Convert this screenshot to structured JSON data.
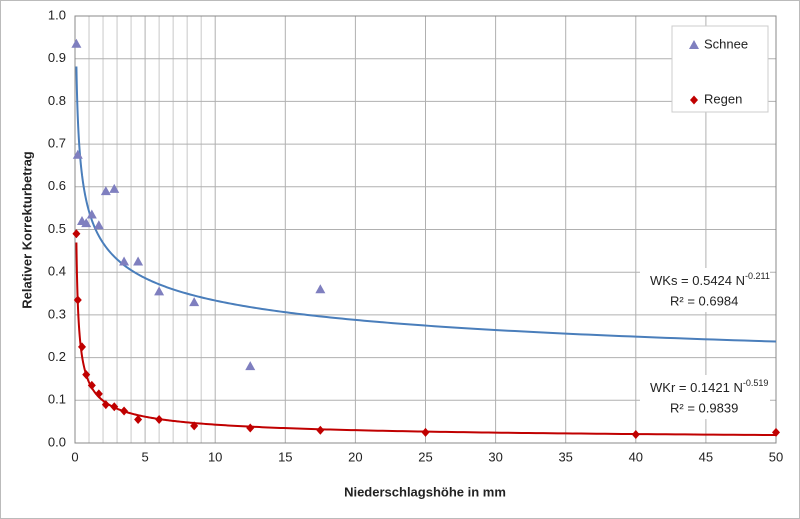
{
  "chart_data": {
    "type": "scatter",
    "xlabel": "Niederschlagshöhe in mm",
    "ylabel": "Relativer Korrekturbetrag",
    "xlim": [
      0,
      50
    ],
    "ylim": [
      0,
      1
    ],
    "xticks": [
      0,
      5,
      10,
      15,
      20,
      25,
      30,
      35,
      40,
      45,
      50
    ],
    "x_minor_ticks": [
      1,
      2,
      3,
      4,
      6,
      7,
      8,
      9
    ],
    "yticks": [
      {
        "value": 0,
        "label": "0.0"
      },
      0.1,
      0.2,
      0.3,
      0.4,
      0.5,
      0.6,
      0.7,
      0.8,
      0.9,
      {
        "value": 1,
        "label": "1.0"
      }
    ],
    "grid": true,
    "legend": "top-right",
    "series": [
      {
        "name": "Schnee",
        "color": "#7f7fbf",
        "marker": "triangle",
        "x": [
          0.1,
          0.2,
          0.5,
          0.8,
          1.2,
          1.7,
          2.2,
          2.8,
          3.5,
          4.5,
          6,
          8.5,
          12.5,
          17.5
        ],
        "values": [
          0.935,
          0.675,
          0.52,
          0.515,
          0.535,
          0.51,
          0.59,
          0.595,
          0.425,
          0.425,
          0.355,
          0.33,
          0.18,
          0.36
        ]
      },
      {
        "name": "Regen",
        "color": "#c00000",
        "marker": "diamond",
        "x": [
          0.1,
          0.2,
          0.5,
          0.8,
          1.2,
          1.7,
          2.2,
          2.8,
          3.5,
          4.5,
          6,
          8.5,
          12.5,
          17.5,
          25,
          40,
          50
        ],
        "values": [
          0.49,
          0.335,
          0.225,
          0.16,
          0.135,
          0.115,
          0.09,
          0.085,
          0.075,
          0.055,
          0.055,
          0.04,
          0.035,
          0.03,
          0.025,
          0.02,
          0.025
        ]
      }
    ],
    "trendlines": [
      {
        "color": "#4a7ebb",
        "a": 0.5424,
        "b": -0.211,
        "label": "WKs = 0.5424 N",
        "exponent_label": "-0.211",
        "r2_label": "R² = 0.6984"
      },
      {
        "color": "#c00000",
        "a": 0.1421,
        "b": -0.519,
        "label": "WKr = 0.1421 N",
        "exponent_label": "-0.519",
        "r2_label": "R² = 0.9839"
      }
    ]
  }
}
